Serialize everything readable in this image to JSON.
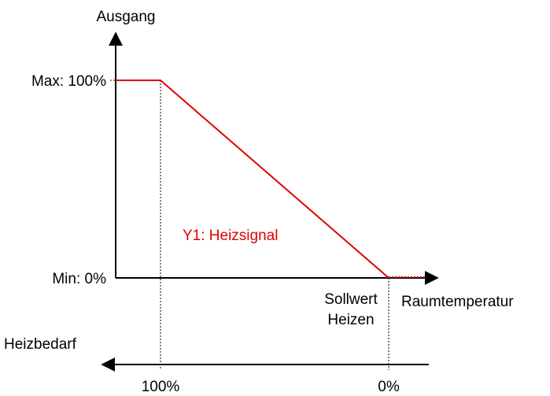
{
  "diagram": {
    "y_axis_label": "Ausgang",
    "x_axis_label": "Raumtemperatur",
    "max_label": "Max: 100%",
    "min_label": "Min: 0%",
    "curve_label": "Y1: Heizsignal",
    "setpoint_label": [
      "Sollwert",
      "Heizen"
    ],
    "demand_axis_label": "Heizbedarf",
    "demand_ticks": [
      "100%",
      "0%"
    ]
  }
}
